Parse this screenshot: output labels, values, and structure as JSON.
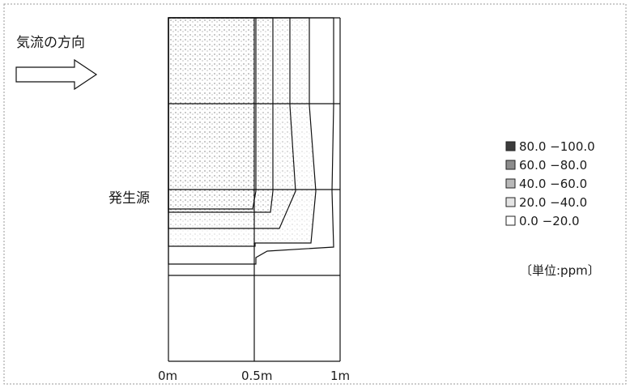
{
  "chart_data": {
    "type": "heatmap",
    "title": "",
    "annotations": {
      "airflow_label": "気流の方向",
      "source_label": "発生源"
    },
    "x_ticks": [
      "0m",
      "0.5m",
      "1m"
    ],
    "xlim": [
      0,
      1
    ],
    "legend": {
      "placement": "right",
      "entries": [
        {
          "label": "80.0 −100.0",
          "range": [
            80,
            100
          ],
          "color": "#3c3c3c"
        },
        {
          "label": "60.0 −80.0",
          "range": [
            60,
            80
          ],
          "color": "#8c8c8c"
        },
        {
          "label": "40.0 −60.0",
          "range": [
            40,
            60
          ],
          "color": "#b8b8b8"
        },
        {
          "label": "20.0 −40.0",
          "range": [
            20,
            40
          ],
          "color": "#e4e4e4"
        },
        {
          "label": "0.0 −20.0",
          "range": [
            0,
            20
          ],
          "color": "#ffffff"
        }
      ],
      "unit_label": "〔単位:ppm〕"
    }
  }
}
